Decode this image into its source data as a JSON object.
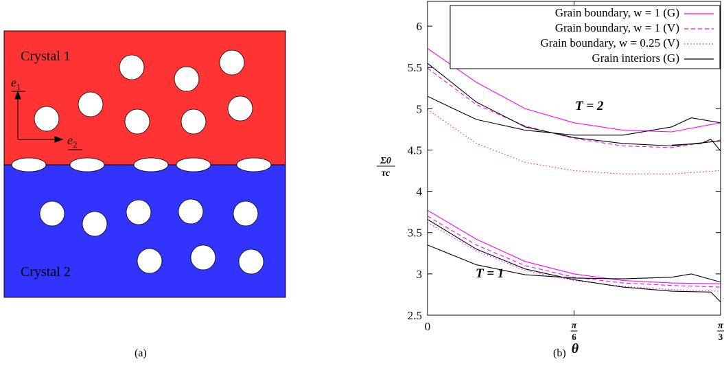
{
  "panel_a": {
    "caption": "(a)",
    "crystal_top": {
      "label": "Crystal 1",
      "color": "#ff3333"
    },
    "crystal_bottom": {
      "label": "Crystal 2",
      "color": "#3333ff"
    },
    "axis_e1": {
      "base": "e",
      "sub": "1"
    },
    "axis_e2": {
      "base": "e",
      "sub": "2"
    }
  },
  "panel_b": {
    "caption": "(b)",
    "ylabel_num": "Σ0",
    "ylabel_den": "τc",
    "xlabel": "θ",
    "annotations": {
      "t2": "T = 2",
      "t1": "T = 1"
    },
    "legend": [
      "Grain boundary, w = 1 (G)",
      "Grain boundary, w = 1 (V)",
      "Grain boundary, w = 0.25 (V)",
      "Grain interiors (G)"
    ],
    "colors": {
      "magenta": "#ff00ff",
      "black": "#000000"
    }
  },
  "chart_data": {
    "type": "line",
    "xlabel": "θ",
    "ylabel": "Σ0/τc",
    "xlim": [
      0,
      1.0472
    ],
    "ylim": [
      2.5,
      6.3
    ],
    "x_ticks": [
      {
        "value": 0,
        "label": "0"
      },
      {
        "value": 0.5236,
        "label": "π/6"
      },
      {
        "value": 1.0472,
        "label": "π/3"
      }
    ],
    "y_ticks": [
      2.5,
      3,
      3.5,
      4,
      4.5,
      5,
      5.5,
      6
    ],
    "legend_placement": "top-right",
    "series": [
      {
        "name": "Grain boundary, w = 1 (G)",
        "group": "T = 2",
        "style": "solid",
        "color": "#ff00ff",
        "x": [
          0,
          0.1745,
          0.3491,
          0.5236,
          0.6981,
          0.8727,
          1.0472
        ],
        "y": [
          5.73,
          5.32,
          5.0,
          4.83,
          4.74,
          4.72,
          4.83
        ]
      },
      {
        "name": "Grain boundary, w = 1 (V)",
        "group": "T = 2",
        "style": "dashed",
        "color": "#ff00ff",
        "x": [
          0,
          0.1745,
          0.3491,
          0.5236,
          0.6981,
          0.8727,
          1.0472
        ],
        "y": [
          5.49,
          5.05,
          4.79,
          4.64,
          4.55,
          4.53,
          4.62
        ]
      },
      {
        "name": "Grain boundary, w = 0.25 (V)",
        "group": "T = 2",
        "style": "dotted",
        "color": "#ff00ff",
        "x": [
          0,
          0.1745,
          0.3491,
          0.5236,
          0.6981,
          0.8727,
          1.0472
        ],
        "y": [
          4.99,
          4.58,
          4.35,
          4.25,
          4.21,
          4.21,
          4.25
        ]
      },
      {
        "name": "Grain interiors (G)",
        "group": "T = 2",
        "style": "solid",
        "color": "#000000",
        "x": [
          0,
          0.1745,
          0.3491,
          0.5236,
          0.6981,
          0.8727,
          1.0472
        ],
        "y": [
          5.55,
          5.08,
          4.78,
          4.65,
          4.58,
          4.55,
          4.61
        ]
      },
      {
        "name": "Grain interiors (G)",
        "group": "T = 2",
        "style": "solid",
        "color": "#000000",
        "x": [
          0,
          0.1745,
          0.3491,
          0.5236,
          0.6981,
          0.8727,
          0.9425,
          1.0472
        ],
        "y": [
          5.15,
          4.87,
          4.74,
          4.68,
          4.68,
          4.78,
          4.89,
          4.83
        ]
      },
      {
        "name": "Grain interiors (G)",
        "group": "T = 2",
        "style": "solid",
        "color": "#000000",
        "x": [
          0.8727,
          0.9774,
          1.0123,
          1.0472
        ],
        "y": [
          4.56,
          4.58,
          4.63,
          4.49
        ]
      },
      {
        "name": "Grain boundary, w = 1 (G)",
        "group": "T = 1",
        "style": "solid",
        "color": "#ff00ff",
        "x": [
          0,
          0.1745,
          0.3491,
          0.5236,
          0.6981,
          0.8727,
          1.0472
        ],
        "y": [
          3.77,
          3.42,
          3.15,
          3.0,
          2.92,
          2.89,
          2.88
        ]
      },
      {
        "name": "Grain boundary, w = 1 (V)",
        "group": "T = 1",
        "style": "dashed",
        "color": "#ff00ff",
        "x": [
          0,
          0.1745,
          0.3491,
          0.5236,
          0.6981,
          0.8727,
          1.0472
        ],
        "y": [
          3.7,
          3.35,
          3.1,
          2.96,
          2.89,
          2.86,
          2.84
        ]
      },
      {
        "name": "Grain boundary, w = 0.25 (V)",
        "group": "T = 1",
        "style": "dotted",
        "color": "#ff00ff",
        "x": [
          0,
          0.1745,
          0.3491,
          0.5236,
          0.6981,
          0.8727,
          1.0472
        ],
        "y": [
          3.62,
          3.28,
          3.04,
          2.92,
          2.85,
          2.81,
          2.79
        ]
      },
      {
        "name": "Grain interiors (G)",
        "group": "T = 1",
        "style": "solid",
        "color": "#000000",
        "x": [
          0,
          0.1745,
          0.3491,
          0.5236,
          0.6981,
          0.8727,
          1.0123,
          1.0472
        ],
        "y": [
          3.66,
          3.3,
          3.06,
          2.93,
          2.84,
          2.79,
          2.78,
          2.66
        ]
      },
      {
        "name": "Grain interiors (G)",
        "group": "T = 1",
        "style": "solid",
        "color": "#000000",
        "x": [
          0,
          0.1745,
          0.3491,
          0.5236,
          0.6981,
          0.8727,
          0.9425,
          1.0472
        ],
        "y": [
          3.35,
          3.11,
          2.99,
          2.95,
          2.94,
          2.96,
          3.0,
          2.9
        ]
      }
    ]
  }
}
